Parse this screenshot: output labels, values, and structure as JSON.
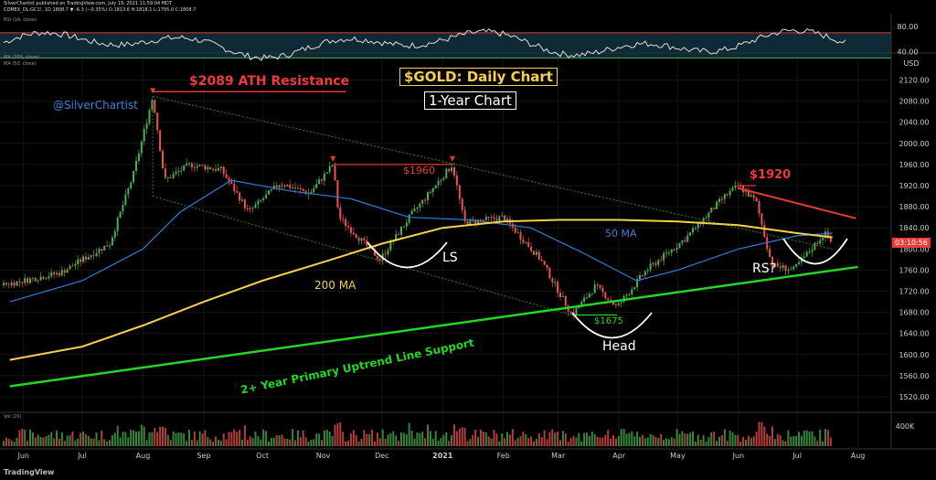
{
  "header": {
    "line1": "SilverChartist published on TradingView.com, July 19, 2021 11:59:04 MDT",
    "line2": "COMEX_DL:GC1!, 1D  1808.7  ▼ -6.3 (−0.35%)  O:1813.6 H:1818.1 L:1795.0 C:1808.7",
    "rsi_label": "RSI (14, close)",
    "ma200_label": "MA (200, close)",
    "ma50_label": "MA (50, close)",
    "vol_label": "Vol (20)",
    "footer_logo": "TradingView"
  },
  "annotations": {
    "ath": "$2089 ATH Resistance",
    "title": "$GOLD: Daily Chart",
    "subtitle": "1-Year Chart",
    "author": "@SilverChartist",
    "peak1960": "$1960",
    "peak1920": "$1920",
    "low1675": "$1675",
    "ls": "LS",
    "head": "Head",
    "rs": "RS?",
    "ma200": "200 MA",
    "ma50": "50 MA",
    "uptrend": "2+ Year Primary Uptrend Line Support"
  },
  "price_tag": "03:10:56",
  "colors": {
    "up": "#26a69a",
    "up_bright": "#4caf50",
    "down": "#ef5350",
    "ma200": "#f6d04d",
    "ma50": "#2e7fd6",
    "uptrend": "#23d723",
    "resistance": "#e53935",
    "rsi": "#e0e0e0"
  },
  "chart_data": {
    "type": "line",
    "title": "$GOLD: Daily Chart",
    "subtitle": "1-Year Chart",
    "symbol": "COMEX_DL:GC1!",
    "interval": "1D",
    "x_ticks": [
      "Jun",
      "Jul",
      "Aug",
      "Sep",
      "Oct",
      "Nov",
      "Dec",
      "2021",
      "Feb",
      "Mar",
      "Apr",
      "May",
      "Jun",
      "Jul",
      "Aug"
    ],
    "y_ticks": [
      1520,
      1560,
      1600,
      1640,
      1680,
      1720,
      1760,
      1800,
      1840,
      1880,
      1920,
      1960,
      2000,
      2040,
      2080,
      2120
    ],
    "y_unit": "USD",
    "ylim": [
      1490,
      2145
    ],
    "price_path": [
      {
        "x": "2020-06-01",
        "y": 1740
      },
      {
        "x": "2020-06-20",
        "y": 1755
      },
      {
        "x": "2020-07-01",
        "y": 1780
      },
      {
        "x": "2020-07-15",
        "y": 1810
      },
      {
        "x": "2020-07-27",
        "y": 1940
      },
      {
        "x": "2020-08-06",
        "y": 2089
      },
      {
        "x": "2020-08-12",
        "y": 1930
      },
      {
        "x": "2020-08-25",
        "y": 1960
      },
      {
        "x": "2020-09-10",
        "y": 1950
      },
      {
        "x": "2020-09-24",
        "y": 1870
      },
      {
        "x": "2020-10-10",
        "y": 1925
      },
      {
        "x": "2020-10-25",
        "y": 1905
      },
      {
        "x": "2020-11-06",
        "y": 1960
      },
      {
        "x": "2020-11-09",
        "y": 1860
      },
      {
        "x": "2020-11-30",
        "y": 1780
      },
      {
        "x": "2020-12-15",
        "y": 1860
      },
      {
        "x": "2021-01-06",
        "y": 1960
      },
      {
        "x": "2021-01-12",
        "y": 1850
      },
      {
        "x": "2021-02-01",
        "y": 1860
      },
      {
        "x": "2021-02-20",
        "y": 1780
      },
      {
        "x": "2021-03-08",
        "y": 1675
      },
      {
        "x": "2021-03-20",
        "y": 1730
      },
      {
        "x": "2021-03-31",
        "y": 1690
      },
      {
        "x": "2021-04-15",
        "y": 1760
      },
      {
        "x": "2021-05-05",
        "y": 1820
      },
      {
        "x": "2021-05-25",
        "y": 1900
      },
      {
        "x": "2021-06-01",
        "y": 1920
      },
      {
        "x": "2021-06-10",
        "y": 1890
      },
      {
        "x": "2021-06-18",
        "y": 1770
      },
      {
        "x": "2021-06-29",
        "y": 1760
      },
      {
        "x": "2021-07-15",
        "y": 1830
      },
      {
        "x": "2021-07-19",
        "y": 1808.7
      }
    ],
    "ma200": [
      {
        "x": "2020-05-25",
        "y": 1590
      },
      {
        "x": "2020-07-01",
        "y": 1615
      },
      {
        "x": "2020-08-01",
        "y": 1655
      },
      {
        "x": "2020-09-01",
        "y": 1700
      },
      {
        "x": "2020-10-01",
        "y": 1740
      },
      {
        "x": "2020-11-01",
        "y": 1775
      },
      {
        "x": "2020-12-01",
        "y": 1810
      },
      {
        "x": "2021-01-01",
        "y": 1840
      },
      {
        "x": "2021-02-01",
        "y": 1852
      },
      {
        "x": "2021-03-01",
        "y": 1855
      },
      {
        "x": "2021-04-01",
        "y": 1855
      },
      {
        "x": "2021-05-01",
        "y": 1852
      },
      {
        "x": "2021-06-01",
        "y": 1845
      },
      {
        "x": "2021-07-01",
        "y": 1830
      },
      {
        "x": "2021-07-19",
        "y": 1822
      }
    ],
    "ma50": [
      {
        "x": "2020-05-25",
        "y": 1700
      },
      {
        "x": "2020-07-01",
        "y": 1740
      },
      {
        "x": "2020-08-01",
        "y": 1800
      },
      {
        "x": "2020-08-20",
        "y": 1870
      },
      {
        "x": "2020-09-15",
        "y": 1930
      },
      {
        "x": "2020-10-15",
        "y": 1910
      },
      {
        "x": "2020-11-15",
        "y": 1895
      },
      {
        "x": "2020-12-15",
        "y": 1860
      },
      {
        "x": "2021-01-15",
        "y": 1855
      },
      {
        "x": "2021-02-15",
        "y": 1840
      },
      {
        "x": "2021-03-15",
        "y": 1790
      },
      {
        "x": "2021-04-10",
        "y": 1740
      },
      {
        "x": "2021-05-01",
        "y": 1760
      },
      {
        "x": "2021-06-01",
        "y": 1800
      },
      {
        "x": "2021-07-01",
        "y": 1825
      },
      {
        "x": "2021-07-19",
        "y": 1830
      }
    ],
    "uptrend_line": [
      {
        "x": "2020-05-25",
        "y": 1540
      },
      {
        "x": "2021-08-01",
        "y": 1766
      }
    ],
    "ath_resistance": 2089,
    "levels": {
      "peak_1960": 1960,
      "low_1675": 1675,
      "peak_1920": 1920
    },
    "rsi": {
      "label": "RSI (14, close)",
      "ticks": [
        80,
        40
      ],
      "upper": 70,
      "lower": 30
    },
    "volume": {
      "label": "Vol (20)",
      "tick": "400K"
    }
  }
}
